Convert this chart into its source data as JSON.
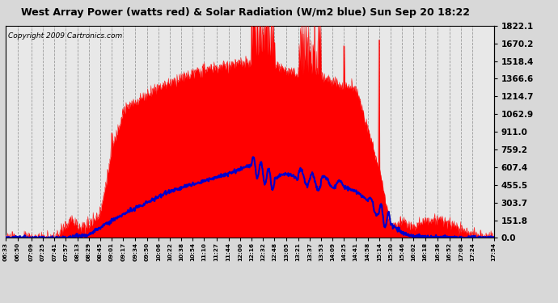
{
  "title": "West Array Power (watts red) & Solar Radiation (W/m2 blue) Sun Sep 20 18:22",
  "copyright": "Copyright 2009 Cartronics.com",
  "ymin": 0.0,
  "ymax": 1822.1,
  "yticks": [
    0.0,
    151.8,
    303.7,
    455.5,
    607.4,
    759.2,
    911.0,
    1062.9,
    1214.7,
    1366.6,
    1518.4,
    1670.2,
    1822.1
  ],
  "bg_color": "#d8d8d8",
  "plot_bg": "#e8e8e8",
  "red_color": "#ff0000",
  "blue_color": "#0000cc",
  "xtick_labels": [
    "06:33",
    "06:50",
    "07:09",
    "07:25",
    "07:41",
    "07:57",
    "08:13",
    "08:29",
    "08:45",
    "09:01",
    "09:17",
    "09:34",
    "09:50",
    "10:06",
    "10:22",
    "10:38",
    "10:54",
    "11:10",
    "11:27",
    "11:44",
    "12:00",
    "12:16",
    "12:32",
    "12:48",
    "13:05",
    "13:21",
    "13:37",
    "13:53",
    "14:09",
    "14:25",
    "14:41",
    "14:58",
    "15:14",
    "15:30",
    "15:46",
    "16:02",
    "16:18",
    "16:36",
    "16:52",
    "17:08",
    "17:24",
    "17:54"
  ]
}
